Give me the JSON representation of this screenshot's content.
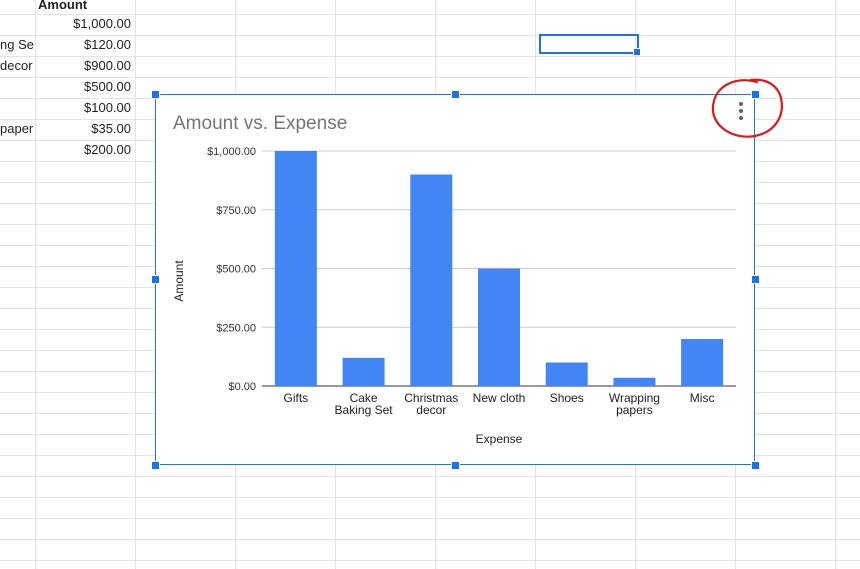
{
  "sheet": {
    "amount_header": "Amount",
    "rows": [
      {
        "expense_fragment": "",
        "amount": "$1,000.00"
      },
      {
        "expense_fragment": "ng Set",
        "amount": "$120.00"
      },
      {
        "expense_fragment": "decor",
        "amount": "$900.00"
      },
      {
        "expense_fragment": "",
        "amount": "$500.00"
      },
      {
        "expense_fragment": "",
        "amount": "$100.00"
      },
      {
        "expense_fragment": "papers",
        "amount": "$35.00"
      },
      {
        "expense_fragment": "",
        "amount": "$200.00"
      }
    ]
  },
  "chart_data": {
    "type": "bar",
    "title": "Amount vs. Expense",
    "xlabel": "Expense",
    "ylabel": "Amount",
    "categories": [
      [
        "Gifts"
      ],
      [
        "Cake",
        "Baking Set"
      ],
      [
        "Christmas",
        "decor"
      ],
      [
        "New cloth"
      ],
      [
        "Shoes"
      ],
      [
        "Wrapping",
        "papers"
      ],
      [
        "Misc"
      ]
    ],
    "values": [
      1000,
      120,
      900,
      500,
      100,
      35,
      200
    ],
    "ylim": [
      0,
      1000
    ],
    "yticks": [
      0,
      250,
      500,
      750,
      1000
    ],
    "ytick_labels": [
      "$0.00",
      "$250.00",
      "$500.00",
      "$750.00",
      "$1,000.00"
    ],
    "bar_color": "#4285f4",
    "grid": true,
    "legend": "none"
  },
  "colors": {
    "selection": "#1a73e8",
    "annotation": "#e0161b"
  },
  "icons": {
    "chart_menu": "more-vert-icon"
  }
}
